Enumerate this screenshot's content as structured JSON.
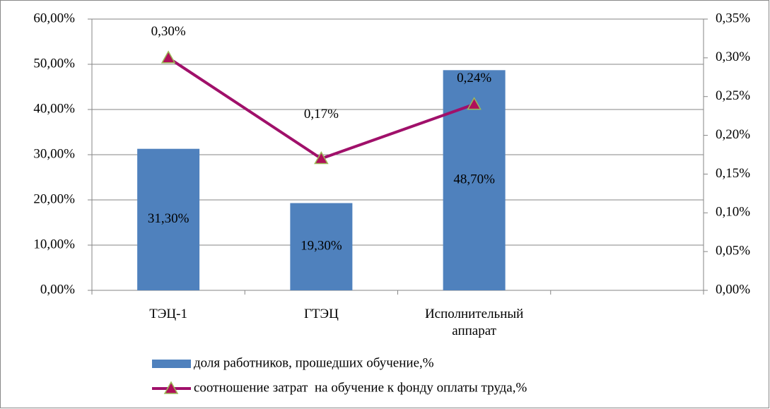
{
  "chart_data": {
    "type": "bar",
    "categories": [
      "ТЭЦ-1",
      "ГТЭЦ",
      "Исполнительный аппарат",
      null
    ],
    "series": [
      {
        "name": "доля работников, прошедших обучение,%",
        "type": "bar",
        "color": "#4f81bd",
        "values": [
          31.3,
          19.3,
          48.7,
          null
        ],
        "value_labels": [
          "31,30%",
          "19,30%",
          "48,70%",
          null
        ]
      },
      {
        "name": "соотношение затрат  на обучение к фонду оплаты труда,%",
        "type": "line",
        "axis": "y2",
        "color": "#a0106a",
        "marker_color": "#b0105a",
        "marker_edge": "#9bbb59",
        "values": [
          0.3,
          0.17,
          0.24,
          null
        ],
        "value_labels": [
          "0,30%",
          "0,17%",
          "0,24%",
          null
        ]
      }
    ],
    "ylim": [
      0,
      60
    ],
    "yticks": [
      {
        "value": 0,
        "label": "0,00%"
      },
      {
        "value": 10,
        "label": "10,00%"
      },
      {
        "value": 20,
        "label": "20,00%"
      },
      {
        "value": 30,
        "label": "30,00%"
      },
      {
        "value": 40,
        "label": "40,00%"
      },
      {
        "value": 50,
        "label": "50,00%"
      },
      {
        "value": 60,
        "label": "60,00%"
      }
    ],
    "y2lim": [
      0,
      0.35
    ],
    "y2ticks": [
      {
        "value": 0,
        "label": "0,00%"
      },
      {
        "value": 0.05,
        "label": "0,05%"
      },
      {
        "value": 0.1,
        "label": "0,10%"
      },
      {
        "value": 0.15,
        "label": "0,15%"
      },
      {
        "value": 0.2,
        "label": "0,20%"
      },
      {
        "value": 0.25,
        "label": "0,25%"
      },
      {
        "value": 0.3,
        "label": "0,30%"
      },
      {
        "value": 0.35,
        "label": "0,35%"
      }
    ],
    "grid": true,
    "legend": "bottom"
  }
}
